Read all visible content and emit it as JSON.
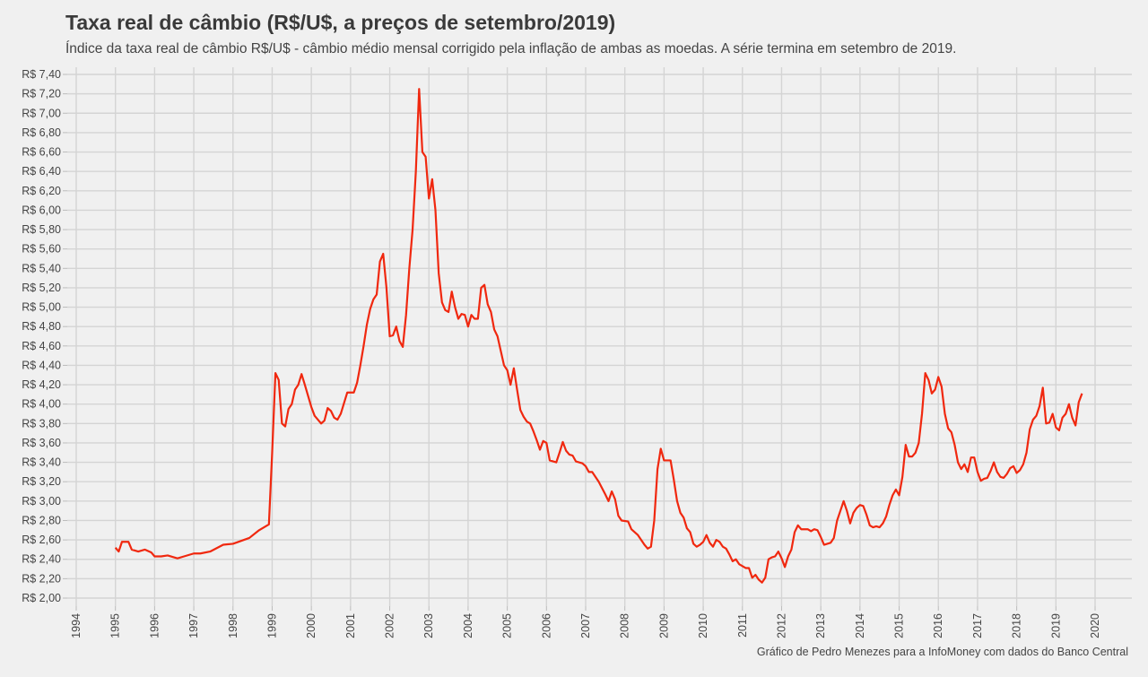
{
  "chart_data": {
    "type": "line",
    "title": "Taxa real de câmbio (R$/U$, a preços de setembro/2019)",
    "subtitle": "Índice da taxa real de câmbio R$/U$ - câmbio médio mensal corrigido pela inflação de ambas as moedas. A série termina em setembro de 2019.",
    "caption": "Gráfico de Pedro Menezes para a InfoMoney com dados do Banco Central",
    "xlabel": "",
    "ylabel": "",
    "xlim": [
      1994,
      2020
    ],
    "ylim": [
      2.0,
      7.4
    ],
    "x_ticks": [
      "1994",
      "1995",
      "1996",
      "1997",
      "1998",
      "1999",
      "2000",
      "2001",
      "2002",
      "2003",
      "2004",
      "2005",
      "2006",
      "2007",
      "2008",
      "2009",
      "2010",
      "2011",
      "2012",
      "2013",
      "2014",
      "2015",
      "2016",
      "2017",
      "2018",
      "2019",
      "2020"
    ],
    "y_ticks": [
      "R$ 2,00",
      "R$ 2,20",
      "R$ 2,40",
      "R$ 2,60",
      "R$ 2,80",
      "R$ 3,00",
      "R$ 3,20",
      "R$ 3,40",
      "R$ 3,60",
      "R$ 3,80",
      "R$ 4,00",
      "R$ 4,20",
      "R$ 4,40",
      "R$ 4,60",
      "R$ 4,80",
      "R$ 5,00",
      "R$ 5,20",
      "R$ 5,40",
      "R$ 5,60",
      "R$ 5,80",
      "R$ 6,00",
      "R$ 6,20",
      "R$ 6,40",
      "R$ 6,60",
      "R$ 6,80",
      "R$ 7,00",
      "R$ 7,20",
      "R$ 7,40"
    ],
    "grid": true,
    "line_color": "#f0280f",
    "points": [
      [
        "1995-01",
        2.52
      ],
      [
        "1995-02",
        2.48
      ],
      [
        "1995-03",
        2.58
      ],
      [
        "1995-05",
        2.58
      ],
      [
        "1995-06",
        2.5
      ],
      [
        "1995-08",
        2.48
      ],
      [
        "1995-10",
        2.5
      ],
      [
        "1995-12",
        2.47
      ],
      [
        "1996-01",
        2.43
      ],
      [
        "1996-03",
        2.43
      ],
      [
        "1996-05",
        2.44
      ],
      [
        "1996-08",
        2.41
      ],
      [
        "1996-10",
        2.43
      ],
      [
        "1997-01",
        2.46
      ],
      [
        "1997-03",
        2.46
      ],
      [
        "1997-06",
        2.48
      ],
      [
        "1997-10",
        2.55
      ],
      [
        "1998-01",
        2.56
      ],
      [
        "1998-06",
        2.62
      ],
      [
        "1998-09",
        2.7
      ],
      [
        "1998-12",
        2.76
      ],
      [
        "1999-01",
        3.5
      ],
      [
        "1999-02",
        4.32
      ],
      [
        "1999-03",
        4.25
      ],
      [
        "1999-04",
        3.8
      ],
      [
        "1999-05",
        3.77
      ],
      [
        "1999-06",
        3.95
      ],
      [
        "1999-07",
        4.0
      ],
      [
        "1999-08",
        4.15
      ],
      [
        "1999-09",
        4.2
      ],
      [
        "1999-10",
        4.31
      ],
      [
        "1999-11",
        4.2
      ],
      [
        "2000-01",
        3.97
      ],
      [
        "2000-02",
        3.88
      ],
      [
        "2000-04",
        3.8
      ],
      [
        "2000-05",
        3.83
      ],
      [
        "2000-06",
        3.96
      ],
      [
        "2000-07",
        3.93
      ],
      [
        "2000-08",
        3.86
      ],
      [
        "2000-09",
        3.84
      ],
      [
        "2000-10",
        3.9
      ],
      [
        "2000-12",
        4.12
      ],
      [
        "2001-02",
        4.12
      ],
      [
        "2001-03",
        4.22
      ],
      [
        "2001-04",
        4.4
      ],
      [
        "2001-05",
        4.6
      ],
      [
        "2001-06",
        4.82
      ],
      [
        "2001-07",
        4.98
      ],
      [
        "2001-08",
        5.08
      ],
      [
        "2001-09",
        5.13
      ],
      [
        "2001-10",
        5.47
      ],
      [
        "2001-11",
        5.55
      ],
      [
        "2001-12",
        5.2
      ],
      [
        "2002-01",
        4.7
      ],
      [
        "2002-02",
        4.71
      ],
      [
        "2002-03",
        4.8
      ],
      [
        "2002-04",
        4.65
      ],
      [
        "2002-05",
        4.59
      ],
      [
        "2002-06",
        4.92
      ],
      [
        "2002-07",
        5.4
      ],
      [
        "2002-08",
        5.8
      ],
      [
        "2002-09",
        6.4
      ],
      [
        "2002-10",
        7.25
      ],
      [
        "2002-11",
        6.6
      ],
      [
        "2002-12",
        6.55
      ],
      [
        "2003-01",
        6.12
      ],
      [
        "2003-02",
        6.32
      ],
      [
        "2003-03",
        6.0
      ],
      [
        "2003-04",
        5.35
      ],
      [
        "2003-05",
        5.05
      ],
      [
        "2003-06",
        4.97
      ],
      [
        "2003-07",
        4.95
      ],
      [
        "2003-08",
        5.16
      ],
      [
        "2003-09",
        5.0
      ],
      [
        "2003-10",
        4.88
      ],
      [
        "2003-11",
        4.93
      ],
      [
        "2003-12",
        4.92
      ],
      [
        "2004-01",
        4.8
      ],
      [
        "2004-02",
        4.92
      ],
      [
        "2004-03",
        4.88
      ],
      [
        "2004-04",
        4.88
      ],
      [
        "2004-05",
        5.2
      ],
      [
        "2004-06",
        5.23
      ],
      [
        "2004-07",
        5.03
      ],
      [
        "2004-08",
        4.95
      ],
      [
        "2004-09",
        4.77
      ],
      [
        "2004-10",
        4.7
      ],
      [
        "2004-11",
        4.55
      ],
      [
        "2004-12",
        4.4
      ],
      [
        "2005-01",
        4.35
      ],
      [
        "2005-02",
        4.2
      ],
      [
        "2005-03",
        4.37
      ],
      [
        "2005-04",
        4.15
      ],
      [
        "2005-05",
        3.94
      ],
      [
        "2005-06",
        3.87
      ],
      [
        "2005-07",
        3.82
      ],
      [
        "2005-08",
        3.8
      ],
      [
        "2005-09",
        3.72
      ],
      [
        "2005-10",
        3.63
      ],
      [
        "2005-11",
        3.53
      ],
      [
        "2005-12",
        3.62
      ],
      [
        "2006-01",
        3.6
      ],
      [
        "2006-02",
        3.42
      ],
      [
        "2006-04",
        3.4
      ],
      [
        "2006-05",
        3.5
      ],
      [
        "2006-06",
        3.61
      ],
      [
        "2006-07",
        3.52
      ],
      [
        "2006-08",
        3.48
      ],
      [
        "2006-09",
        3.47
      ],
      [
        "2006-10",
        3.41
      ],
      [
        "2006-12",
        3.39
      ],
      [
        "2007-01",
        3.36
      ],
      [
        "2007-02",
        3.3
      ],
      [
        "2007-03",
        3.3
      ],
      [
        "2007-05",
        3.2
      ],
      [
        "2007-07",
        3.07
      ],
      [
        "2007-08",
        3.0
      ],
      [
        "2007-09",
        3.1
      ],
      [
        "2007-10",
        3.02
      ],
      [
        "2007-11",
        2.85
      ],
      [
        "2007-12",
        2.8
      ],
      [
        "2008-02",
        2.79
      ],
      [
        "2008-03",
        2.71
      ],
      [
        "2008-05",
        2.65
      ],
      [
        "2008-06",
        2.6
      ],
      [
        "2008-07",
        2.55
      ],
      [
        "2008-08",
        2.51
      ],
      [
        "2008-09",
        2.53
      ],
      [
        "2008-10",
        2.8
      ],
      [
        "2008-11",
        3.33
      ],
      [
        "2008-12",
        3.54
      ],
      [
        "2009-01",
        3.42
      ],
      [
        "2009-02",
        3.42
      ],
      [
        "2009-03",
        3.42
      ],
      [
        "2009-04",
        3.22
      ],
      [
        "2009-05",
        3.0
      ],
      [
        "2009-06",
        2.88
      ],
      [
        "2009-07",
        2.83
      ],
      [
        "2009-08",
        2.72
      ],
      [
        "2009-09",
        2.68
      ],
      [
        "2009-10",
        2.56
      ],
      [
        "2009-11",
        2.53
      ],
      [
        "2009-12",
        2.55
      ],
      [
        "2010-01",
        2.58
      ],
      [
        "2010-02",
        2.65
      ],
      [
        "2010-03",
        2.57
      ],
      [
        "2010-04",
        2.53
      ],
      [
        "2010-05",
        2.6
      ],
      [
        "2010-06",
        2.58
      ],
      [
        "2010-07",
        2.53
      ],
      [
        "2010-08",
        2.51
      ],
      [
        "2010-09",
        2.45
      ],
      [
        "2010-10",
        2.38
      ],
      [
        "2010-11",
        2.4
      ],
      [
        "2010-12",
        2.35
      ],
      [
        "2011-01",
        2.33
      ],
      [
        "2011-02",
        2.31
      ],
      [
        "2011-03",
        2.31
      ],
      [
        "2011-04",
        2.21
      ],
      [
        "2011-05",
        2.24
      ],
      [
        "2011-06",
        2.19
      ],
      [
        "2011-07",
        2.16
      ],
      [
        "2011-08",
        2.21
      ],
      [
        "2011-09",
        2.4
      ],
      [
        "2011-10",
        2.42
      ],
      [
        "2011-11",
        2.43
      ],
      [
        "2011-12",
        2.48
      ],
      [
        "2012-01",
        2.41
      ],
      [
        "2012-02",
        2.32
      ],
      [
        "2012-03",
        2.43
      ],
      [
        "2012-04",
        2.5
      ],
      [
        "2012-05",
        2.68
      ],
      [
        "2012-06",
        2.75
      ],
      [
        "2012-07",
        2.71
      ],
      [
        "2012-08",
        2.71
      ],
      [
        "2012-09",
        2.71
      ],
      [
        "2012-10",
        2.69
      ],
      [
        "2012-11",
        2.71
      ],
      [
        "2012-12",
        2.7
      ],
      [
        "2013-01",
        2.63
      ],
      [
        "2013-02",
        2.55
      ],
      [
        "2013-03",
        2.56
      ],
      [
        "2013-04",
        2.57
      ],
      [
        "2013-05",
        2.62
      ],
      [
        "2013-06",
        2.8
      ],
      [
        "2013-07",
        2.9
      ],
      [
        "2013-08",
        3.0
      ],
      [
        "2013-09",
        2.9
      ],
      [
        "2013-10",
        2.77
      ],
      [
        "2013-11",
        2.88
      ],
      [
        "2013-12",
        2.93
      ],
      [
        "2014-01",
        2.96
      ],
      [
        "2014-02",
        2.95
      ],
      [
        "2014-03",
        2.86
      ],
      [
        "2014-04",
        2.75
      ],
      [
        "2014-05",
        2.73
      ],
      [
        "2014-06",
        2.74
      ],
      [
        "2014-07",
        2.73
      ],
      [
        "2014-08",
        2.77
      ],
      [
        "2014-09",
        2.84
      ],
      [
        "2014-10",
        2.96
      ],
      [
        "2014-11",
        3.06
      ],
      [
        "2014-12",
        3.12
      ],
      [
        "2015-01",
        3.06
      ],
      [
        "2015-02",
        3.25
      ],
      [
        "2015-03",
        3.58
      ],
      [
        "2015-04",
        3.46
      ],
      [
        "2015-05",
        3.46
      ],
      [
        "2015-06",
        3.5
      ],
      [
        "2015-07",
        3.6
      ],
      [
        "2015-08",
        3.9
      ],
      [
        "2015-09",
        4.32
      ],
      [
        "2015-10",
        4.25
      ],
      [
        "2015-11",
        4.11
      ],
      [
        "2015-12",
        4.15
      ],
      [
        "2016-01",
        4.28
      ],
      [
        "2016-02",
        4.18
      ],
      [
        "2016-03",
        3.9
      ],
      [
        "2016-04",
        3.75
      ],
      [
        "2016-05",
        3.71
      ],
      [
        "2016-06",
        3.58
      ],
      [
        "2016-07",
        3.4
      ],
      [
        "2016-08",
        3.33
      ],
      [
        "2016-09",
        3.38
      ],
      [
        "2016-10",
        3.3
      ],
      [
        "2016-11",
        3.45
      ],
      [
        "2016-12",
        3.45
      ],
      [
        "2017-01",
        3.3
      ],
      [
        "2017-02",
        3.21
      ],
      [
        "2017-03",
        3.23
      ],
      [
        "2017-04",
        3.24
      ],
      [
        "2017-05",
        3.31
      ],
      [
        "2017-06",
        3.4
      ],
      [
        "2017-07",
        3.3
      ],
      [
        "2017-08",
        3.25
      ],
      [
        "2017-09",
        3.24
      ],
      [
        "2017-10",
        3.28
      ],
      [
        "2017-11",
        3.34
      ],
      [
        "2017-12",
        3.36
      ],
      [
        "2018-01",
        3.29
      ],
      [
        "2018-02",
        3.32
      ],
      [
        "2018-03",
        3.38
      ],
      [
        "2018-04",
        3.5
      ],
      [
        "2018-05",
        3.74
      ],
      [
        "2018-06",
        3.84
      ],
      [
        "2018-07",
        3.88
      ],
      [
        "2018-08",
        3.98
      ],
      [
        "2018-09",
        4.17
      ],
      [
        "2018-10",
        3.8
      ],
      [
        "2018-11",
        3.81
      ],
      [
        "2018-12",
        3.9
      ],
      [
        "2019-01",
        3.76
      ],
      [
        "2019-02",
        3.73
      ],
      [
        "2019-03",
        3.86
      ],
      [
        "2019-04",
        3.9
      ],
      [
        "2019-05",
        4.0
      ],
      [
        "2019-06",
        3.86
      ],
      [
        "2019-07",
        3.78
      ],
      [
        "2019-08",
        4.02
      ],
      [
        "2019-09",
        4.11
      ]
    ]
  }
}
